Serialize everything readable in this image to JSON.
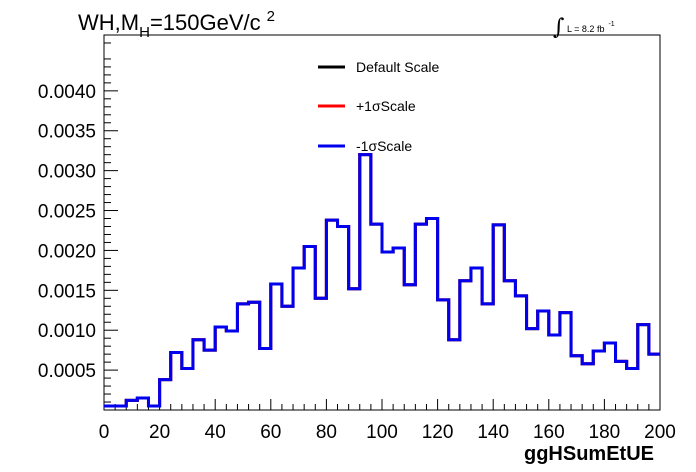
{
  "chart_data": {
    "type": "line",
    "title": {
      "prefix": "WH,M",
      "subscript": "H",
      "suffix": "=150GeV/c",
      "superscript": "2"
    },
    "luminosity": {
      "symbol": "∫",
      "text": "L = 8.2 fb",
      "superscript": "-1"
    },
    "xlabel": "ggHSumEtUE",
    "ylabel": "",
    "xlim": [
      0,
      200
    ],
    "ylim": [
      0,
      0.0047
    ],
    "x_ticks": [
      0,
      20,
      40,
      60,
      80,
      100,
      120,
      140,
      160,
      180,
      200
    ],
    "x_tick_labels": [
      "0",
      "20",
      "40",
      "60",
      "80",
      "100",
      "120",
      "140",
      "160",
      "180",
      "200"
    ],
    "y_ticks": [
      0.0005,
      0.001,
      0.0015,
      0.002,
      0.0025,
      0.003,
      0.0035,
      0.004
    ],
    "y_tick_labels": [
      "0.0005",
      "0.0010",
      "0.0015",
      "0.0020",
      "0.0025",
      "0.0030",
      "0.0035",
      "0.0040"
    ],
    "grid": false,
    "legend_position": "top-center",
    "bin_edges": [
      0,
      4,
      8,
      12,
      16,
      20,
      24,
      28,
      32,
      36,
      40,
      44,
      48,
      52,
      56,
      60,
      64,
      68,
      72,
      76,
      80,
      84,
      88,
      92,
      96,
      100,
      104,
      108,
      112,
      116,
      120,
      124,
      128,
      132,
      136,
      140,
      144,
      148,
      152,
      156,
      160,
      164,
      168,
      172,
      176,
      180,
      184,
      188,
      192,
      196,
      200
    ],
    "series": [
      {
        "name": "Default Scale",
        "color": "#000000",
        "values": [
          5e-05,
          5e-05,
          0.00012,
          0.00015,
          5e-05,
          0.00038,
          0.00072,
          0.00052,
          0.00088,
          0.00075,
          0.00104,
          0.00099,
          0.00133,
          0.00135,
          0.00077,
          0.00158,
          0.0013,
          0.00178,
          0.00205,
          0.0014,
          0.00238,
          0.0023,
          0.00152,
          0.0032,
          0.00233,
          0.00198,
          0.00203,
          0.00157,
          0.00233,
          0.0024,
          0.00138,
          0.00088,
          0.00162,
          0.00178,
          0.00133,
          0.00232,
          0.00162,
          0.00143,
          0.00102,
          0.00124,
          0.00094,
          0.00122,
          0.00068,
          0.00058,
          0.00074,
          0.00084,
          0.00061,
          0.00052,
          0.00107,
          0.0007
        ]
      },
      {
        "name": "+1σScale",
        "color": "#ff0000",
        "values": [
          5e-05,
          5e-05,
          0.00012,
          0.00015,
          5e-05,
          0.00038,
          0.00072,
          0.00052,
          0.00088,
          0.00075,
          0.00104,
          0.00099,
          0.00133,
          0.00135,
          0.00077,
          0.00158,
          0.0013,
          0.00178,
          0.00205,
          0.0014,
          0.00238,
          0.0023,
          0.00152,
          0.0032,
          0.00233,
          0.00198,
          0.00203,
          0.00157,
          0.00233,
          0.0024,
          0.00138,
          0.00088,
          0.00162,
          0.00178,
          0.00133,
          0.00232,
          0.00162,
          0.00143,
          0.00102,
          0.00124,
          0.00094,
          0.00122,
          0.00068,
          0.00058,
          0.00074,
          0.00084,
          0.00061,
          0.00052,
          0.00107,
          0.0007
        ]
      },
      {
        "name": "-1σScale",
        "color": "#0000ee",
        "values": [
          5e-05,
          5e-05,
          0.00012,
          0.00015,
          5e-05,
          0.00038,
          0.00072,
          0.00052,
          0.00088,
          0.00075,
          0.00104,
          0.00099,
          0.00133,
          0.00135,
          0.00077,
          0.00158,
          0.0013,
          0.00178,
          0.00205,
          0.0014,
          0.00238,
          0.0023,
          0.00152,
          0.0032,
          0.00233,
          0.00198,
          0.00203,
          0.00157,
          0.00233,
          0.0024,
          0.00138,
          0.00088,
          0.00162,
          0.00178,
          0.00133,
          0.00232,
          0.00162,
          0.00143,
          0.00102,
          0.00124,
          0.00094,
          0.00122,
          0.00068,
          0.00058,
          0.00074,
          0.00084,
          0.00061,
          0.00052,
          0.00107,
          0.0007
        ]
      }
    ]
  }
}
